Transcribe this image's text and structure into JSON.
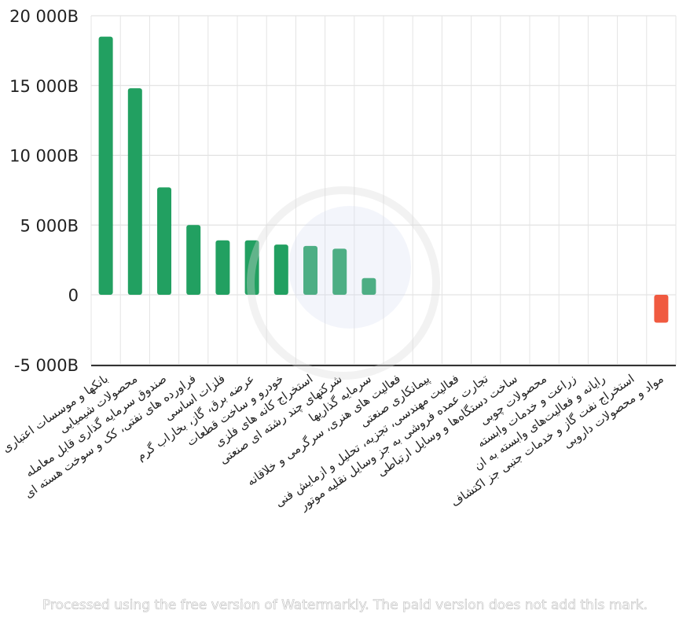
{
  "chart_data": {
    "type": "bar",
    "title": "",
    "xlabel": "",
    "ylabel": "",
    "ylim": [
      -5000,
      20000
    ],
    "yticks": [
      -5000,
      0,
      5000,
      10000,
      15000,
      20000
    ],
    "ytick_labels": [
      "-5 000B",
      "0",
      "5 000B",
      "10 000B",
      "15 000B",
      "20 000B"
    ],
    "grid": true,
    "legend": "none",
    "categories": [
      "بانکها و موسسات اعتباری",
      "محصولات شیمیایی",
      "صندوق سرمایه گذاری قابل معامله",
      "فراورده های نفتی، کک و سوخت هسته ای",
      "فلزات اساسی",
      "عرضه برق، گاز، بخاراب گرم",
      "خودرو و ساخت قطعات",
      "استخراج کانه های فلزی",
      "شرکتهای چند رشته ای صنعتی",
      "سرمایه گذاریها",
      "فعالیت های هنری، سرگرمی و خلاقانه",
      "پیمانکاری صنعتی",
      "فعالیت مهندسی، تجزیه، تحلیل و ازمایش فنی",
      "تجارت عمده فروشی به جز وسایل نقلیه موتور",
      "ساخت دستگاه‌ها و وسایل ارتباطی",
      "محصولات چوبی",
      "زراعت و خدمات وابسته",
      "رایانه و فعالیت‌های وابسته به ان",
      "استخراج نفت گاز و خدمات جنبی جز اکتشاف",
      "مواد و محصولات دارویی"
    ],
    "values": [
      18500,
      14800,
      7700,
      5000,
      3900,
      3900,
      3600,
      3500,
      3300,
      1200,
      0,
      0,
      0,
      0,
      0,
      0,
      0,
      0,
      0,
      -2000
    ],
    "colors": {
      "positive": "#22a061",
      "negative": "#f05a40"
    }
  },
  "watermark": {
    "text": "Processed using the free version of Watermarkly. The paid version does not add this mark."
  }
}
